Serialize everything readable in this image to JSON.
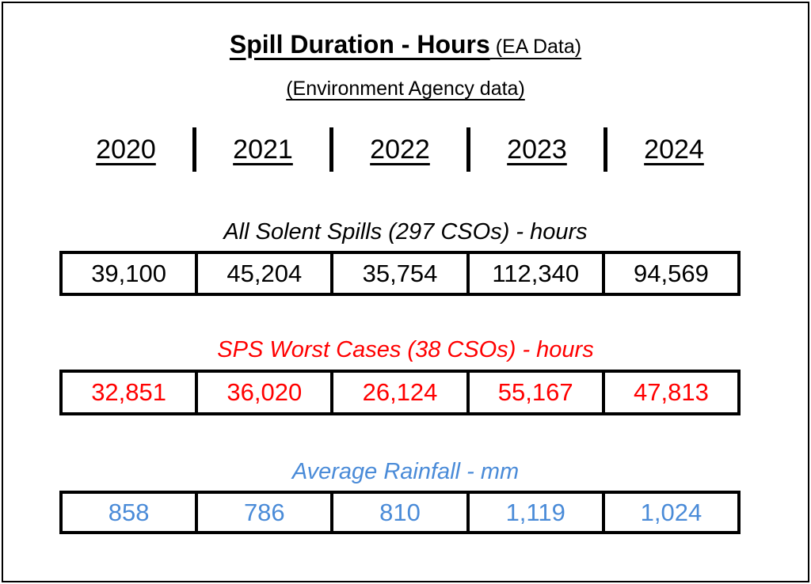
{
  "title": {
    "main": "Spill Duration - Hours",
    "suffix": " (EA Data)",
    "subtitle": "(Environment Agency data)"
  },
  "years": [
    "2020",
    "2021",
    "2022",
    "2023",
    "2024"
  ],
  "sections": [
    {
      "label": "All Solent Spills (297 CSOs) - hours",
      "color": "#000000",
      "values": [
        "39,100",
        "45,204",
        "35,754",
        "112,340",
        "94,569"
      ]
    },
    {
      "label": "SPS Worst Cases (38 CSOs) - hours",
      "color": "#ff0000",
      "values": [
        "32,851",
        "36,020",
        "26,124",
        "55,167",
        "47,813"
      ]
    },
    {
      "label": "Average Rainfall - mm",
      "color": "#4a8bd8",
      "values": [
        "858",
        "786",
        "810",
        "1,119",
        "1,024"
      ]
    }
  ],
  "chart_data": {
    "type": "table",
    "title": "Spill Duration - Hours (EA Data)",
    "subtitle": "(Environment Agency data)",
    "categories": [
      "2020",
      "2021",
      "2022",
      "2023",
      "2024"
    ],
    "series": [
      {
        "name": "All Solent Spills (297 CSOs) - hours",
        "values": [
          39100,
          45204,
          35754,
          112340,
          94569
        ]
      },
      {
        "name": "SPS Worst Cases (38 CSOs) - hours",
        "values": [
          32851,
          36020,
          26124,
          55167,
          47813
        ]
      },
      {
        "name": "Average Rainfall - mm",
        "values": [
          858,
          786,
          810,
          1119,
          1024
        ]
      }
    ]
  }
}
